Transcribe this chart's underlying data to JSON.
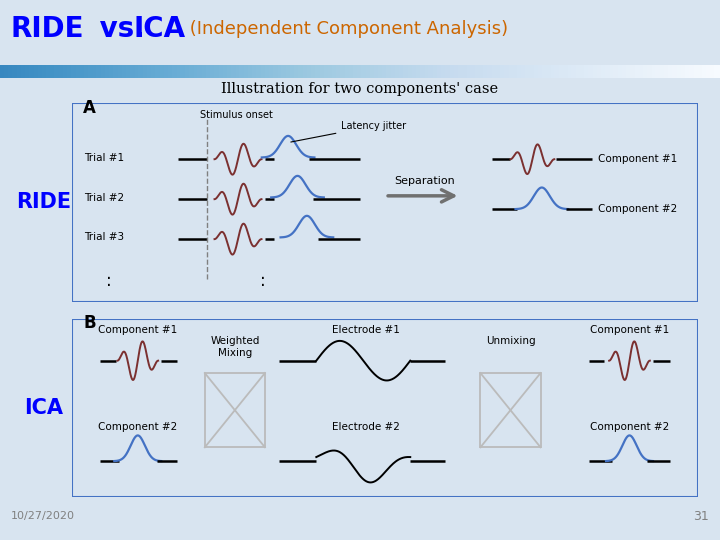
{
  "title_ride": "RIDE",
  "title_vs": " vs. ",
  "title_ica": "ICA",
  "title_sub": " (Independent Component Analysis)",
  "subtitle": "Illustration for two components' case",
  "panel_a_label": "A",
  "panel_b_label": "B",
  "ride_label": "RIDE",
  "ica_label": "ICA",
  "stimulus_onset": "Stimulus onset",
  "latency_jitter": "Latency jitter",
  "separation": "Separation",
  "unmixing": "Unmixing",
  "weighted_mixing": "Weighted\nMixing",
  "trial1": "Trial #1",
  "trial2": "Trial #2",
  "trial3": "Trial #3",
  "comp1_label": "Component #1",
  "comp2_label": "Component #2",
  "electrode1": "Electrode #1",
  "electrode2": "Electrode #2",
  "date_label": "10/27/2020",
  "page_num": "31",
  "color_blue_title": "#0000FF",
  "color_orange_title": "#CC6600",
  "color_header_line": "#4472C4",
  "color_dark_red": "#7B3030",
  "color_blue": "#4472C4",
  "color_black": "#000000",
  "color_gray_arrow": "#707070",
  "color_panel_bg": "#FFFFFF",
  "color_outer_bg": "#D8E4F0",
  "color_panel_border": "#4472C4",
  "color_hourglass": "#BBBBBB"
}
